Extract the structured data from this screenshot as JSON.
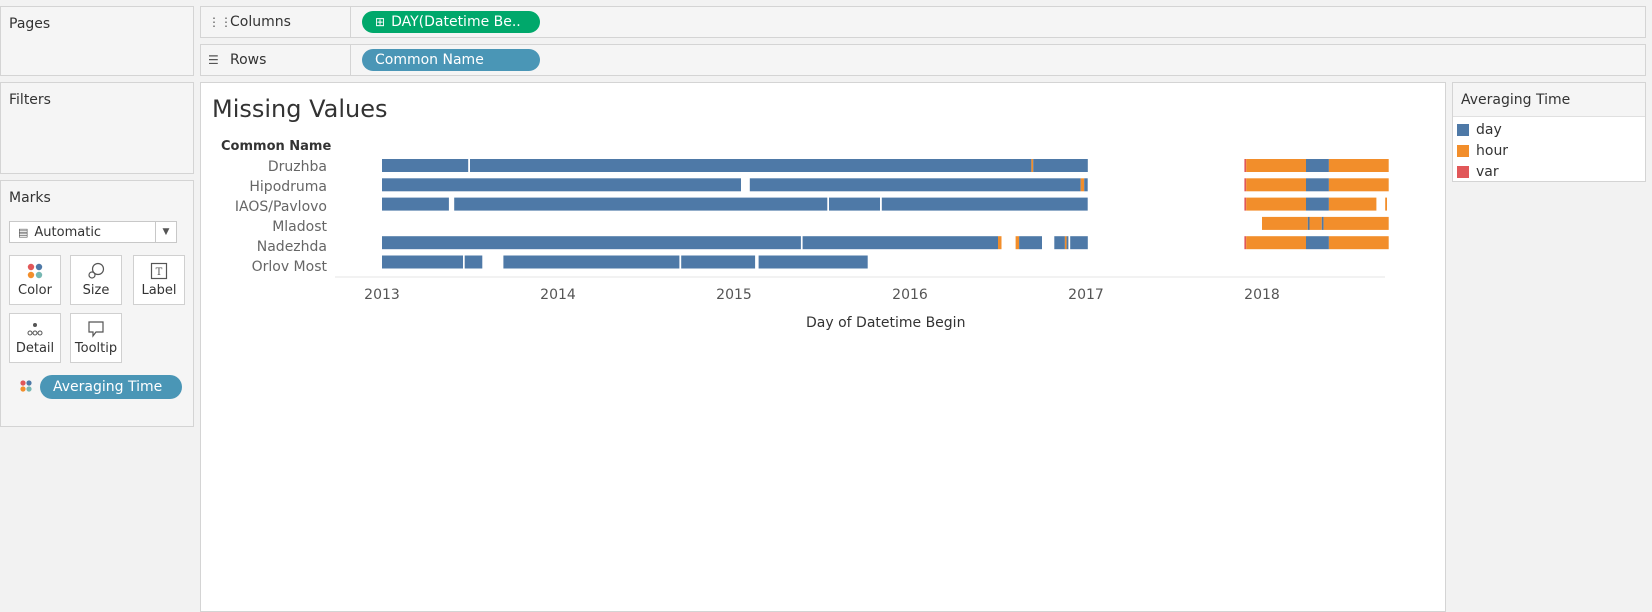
{
  "pages": {
    "title": "Pages"
  },
  "filters": {
    "title": "Filters"
  },
  "columns_shelf": {
    "label": "Columns",
    "pill": "DAY(Datetime Be.."
  },
  "rows_shelf": {
    "label": "Rows",
    "pill": "Common Name"
  },
  "marks": {
    "title": "Marks",
    "type": "Automatic",
    "buttons": [
      {
        "label": "Color",
        "icon": "color-dots-icon"
      },
      {
        "label": "Size",
        "icon": "size-icon"
      },
      {
        "label": "Label",
        "icon": "label-icon"
      },
      {
        "label": "Detail",
        "icon": "detail-icon"
      },
      {
        "label": "Tooltip",
        "icon": "tooltip-icon"
      }
    ],
    "color_pill": "Averaging Time"
  },
  "legend": {
    "title": "Averaging Time",
    "items": [
      {
        "label": "day",
        "color": "#4e79a7"
      },
      {
        "label": "hour",
        "color": "#f28e2b"
      },
      {
        "label": "var",
        "color": "#e15759"
      }
    ]
  },
  "chart_data": {
    "type": "gantt",
    "title": "Missing Values",
    "row_header": "Common Name",
    "xlabel": "Day of Datetime Begin",
    "x_ticks": [
      "2013",
      "2014",
      "2015",
      "2016",
      "2017",
      "2018"
    ],
    "xlim": [
      2013.0,
      2018.8
    ],
    "rows": [
      "Druzhba",
      "Hipodruma",
      "IAOS/Pavlovo",
      "Mladost",
      "Nadezhda",
      "Orlov Most"
    ],
    "series_colors": {
      "day": "#4e79a7",
      "hour": "#f28e2b",
      "var": "#e15759"
    },
    "segments": [
      {
        "row": "Druzhba",
        "series": "day",
        "start": 2013.0,
        "end": 2013.49
      },
      {
        "row": "Druzhba",
        "series": "day",
        "start": 2013.5,
        "end": 2016.69
      },
      {
        "row": "Druzhba",
        "series": "hour",
        "start": 2016.69,
        "end": 2016.7
      },
      {
        "row": "Druzhba",
        "series": "day",
        "start": 2016.7,
        "end": 2017.01
      },
      {
        "row": "Druzhba",
        "series": "var",
        "start": 2017.9,
        "end": 2017.91
      },
      {
        "row": "Druzhba",
        "series": "hour",
        "start": 2017.91,
        "end": 2018.25
      },
      {
        "row": "Druzhba",
        "series": "day",
        "start": 2018.25,
        "end": 2018.38
      },
      {
        "row": "Druzhba",
        "series": "hour",
        "start": 2018.38,
        "end": 2018.72
      },
      {
        "row": "Hipodruma",
        "series": "day",
        "start": 2013.0,
        "end": 2015.04
      },
      {
        "row": "Hipodruma",
        "series": "day",
        "start": 2015.09,
        "end": 2016.97
      },
      {
        "row": "Hipodruma",
        "series": "hour",
        "start": 2016.97,
        "end": 2016.99
      },
      {
        "row": "Hipodruma",
        "series": "day",
        "start": 2016.99,
        "end": 2017.01
      },
      {
        "row": "Hipodruma",
        "series": "var",
        "start": 2017.9,
        "end": 2017.91
      },
      {
        "row": "Hipodruma",
        "series": "hour",
        "start": 2017.91,
        "end": 2018.25
      },
      {
        "row": "Hipodruma",
        "series": "day",
        "start": 2018.25,
        "end": 2018.38
      },
      {
        "row": "Hipodruma",
        "series": "hour",
        "start": 2018.38,
        "end": 2018.72
      },
      {
        "row": "IAOS/Pavlovo",
        "series": "day",
        "start": 2013.0,
        "end": 2013.38
      },
      {
        "row": "IAOS/Pavlovo",
        "series": "day",
        "start": 2013.41,
        "end": 2015.53
      },
      {
        "row": "IAOS/Pavlovo",
        "series": "day",
        "start": 2015.54,
        "end": 2015.83
      },
      {
        "row": "IAOS/Pavlovo",
        "series": "day",
        "start": 2015.84,
        "end": 2017.01
      },
      {
        "row": "IAOS/Pavlovo",
        "series": "var",
        "start": 2017.9,
        "end": 2017.91
      },
      {
        "row": "IAOS/Pavlovo",
        "series": "hour",
        "start": 2017.91,
        "end": 2018.25
      },
      {
        "row": "IAOS/Pavlovo",
        "series": "day",
        "start": 2018.25,
        "end": 2018.38
      },
      {
        "row": "IAOS/Pavlovo",
        "series": "hour",
        "start": 2018.38,
        "end": 2018.65
      },
      {
        "row": "IAOS/Pavlovo",
        "series": "hour",
        "start": 2018.7,
        "end": 2018.71
      },
      {
        "row": "Mladost",
        "series": "hour",
        "start": 2018.0,
        "end": 2018.26
      },
      {
        "row": "Mladost",
        "series": "day",
        "start": 2018.26,
        "end": 2018.27
      },
      {
        "row": "Mladost",
        "series": "hour",
        "start": 2018.27,
        "end": 2018.34
      },
      {
        "row": "Mladost",
        "series": "day",
        "start": 2018.34,
        "end": 2018.35
      },
      {
        "row": "Mladost",
        "series": "hour",
        "start": 2018.35,
        "end": 2018.72
      },
      {
        "row": "Nadezhda",
        "series": "day",
        "start": 2013.0,
        "end": 2015.38
      },
      {
        "row": "Nadezhda",
        "series": "day",
        "start": 2015.39,
        "end": 2016.5
      },
      {
        "row": "Nadezhda",
        "series": "hour",
        "start": 2016.5,
        "end": 2016.52
      },
      {
        "row": "Nadezhda",
        "series": "hour",
        "start": 2016.6,
        "end": 2016.62
      },
      {
        "row": "Nadezhda",
        "series": "day",
        "start": 2016.62,
        "end": 2016.75
      },
      {
        "row": "Nadezhda",
        "series": "day",
        "start": 2016.82,
        "end": 2016.88
      },
      {
        "row": "Nadezhda",
        "series": "hour",
        "start": 2016.88,
        "end": 2016.89
      },
      {
        "row": "Nadezhda",
        "series": "day",
        "start": 2016.89,
        "end": 2016.9
      },
      {
        "row": "Nadezhda",
        "series": "day",
        "start": 2016.91,
        "end": 2017.01
      },
      {
        "row": "Nadezhda",
        "series": "var",
        "start": 2017.9,
        "end": 2017.91
      },
      {
        "row": "Nadezhda",
        "series": "hour",
        "start": 2017.91,
        "end": 2018.25
      },
      {
        "row": "Nadezhda",
        "series": "day",
        "start": 2018.25,
        "end": 2018.38
      },
      {
        "row": "Nadezhda",
        "series": "hour",
        "start": 2018.38,
        "end": 2018.72
      },
      {
        "row": "Orlov Most",
        "series": "day",
        "start": 2013.0,
        "end": 2013.46
      },
      {
        "row": "Orlov Most",
        "series": "day",
        "start": 2013.47,
        "end": 2013.57
      },
      {
        "row": "Orlov Most",
        "series": "day",
        "start": 2013.69,
        "end": 2014.69
      },
      {
        "row": "Orlov Most",
        "series": "day",
        "start": 2014.7,
        "end": 2015.12
      },
      {
        "row": "Orlov Most",
        "series": "day",
        "start": 2015.14,
        "end": 2015.76
      }
    ]
  }
}
